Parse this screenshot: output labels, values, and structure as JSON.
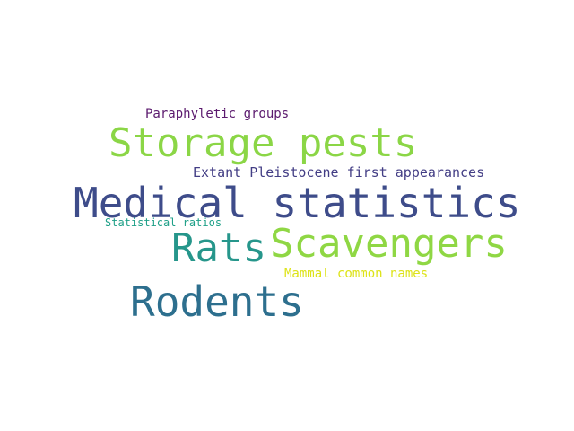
{
  "words": [
    {
      "id": "w-paraphyletic",
      "text": "Paraphyletic groups",
      "color": "#5b1a6e"
    },
    {
      "id": "w-storage",
      "text": "Storage pests",
      "color": "#8bd646"
    },
    {
      "id": "w-extant",
      "text": "Extant Pleistocene first appearances",
      "color": "#433e85"
    },
    {
      "id": "w-medical",
      "text": "Medical statistics",
      "color": "#3e4c8a"
    },
    {
      "id": "w-statratios",
      "text": "Statistical ratios",
      "color": "#1fa088"
    },
    {
      "id": "w-rats",
      "text": "Rats",
      "color": "#26968b"
    },
    {
      "id": "w-scavengers",
      "text": "Scavengers",
      "color": "#8fd744"
    },
    {
      "id": "w-mammal",
      "text": "Mammal common names",
      "color": "#dde318"
    },
    {
      "id": "w-rodents",
      "text": "Rodents",
      "color": "#2d6f8e"
    }
  ]
}
